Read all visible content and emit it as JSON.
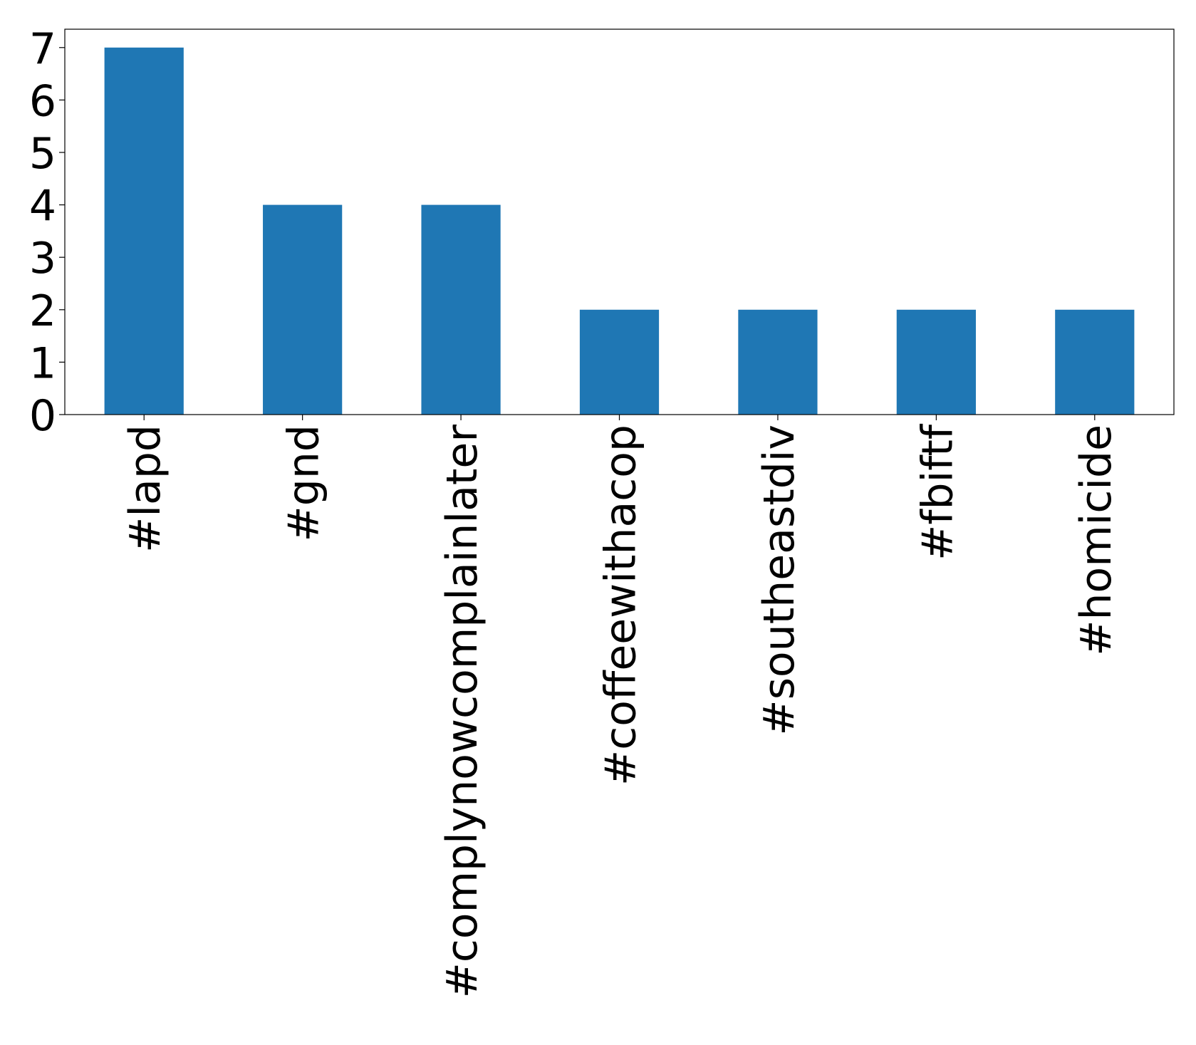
{
  "chart_data": {
    "type": "bar",
    "categories": [
      "#lapd",
      "#gnd",
      "#complynowcomplainlater",
      "#coffeewithacop",
      "#southeastdiv",
      "#fbiftf",
      "#homicide"
    ],
    "values": [
      7,
      4,
      4,
      2,
      2,
      2,
      2
    ],
    "color": "#1f77b4",
    "ylim": [
      0,
      7.35
    ],
    "yticks": [
      0,
      1,
      2,
      3,
      4,
      5,
      6,
      7
    ],
    "grid": false
  }
}
